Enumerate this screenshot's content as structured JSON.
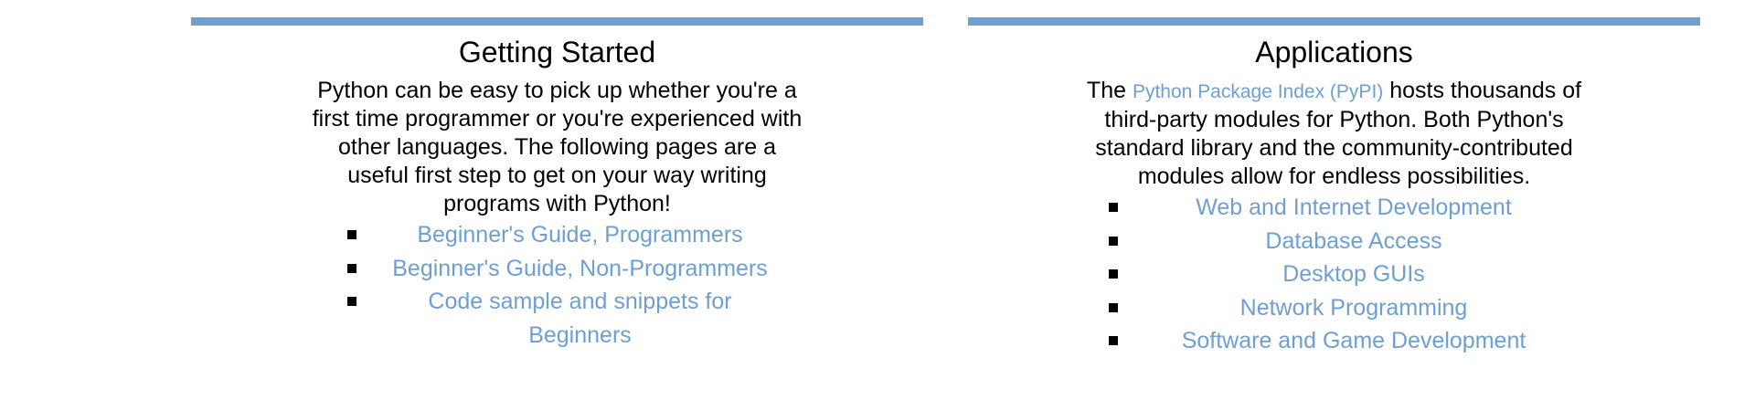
{
  "getting_started": {
    "title": "Getting Started",
    "body": "Python can be easy to pick up whether you're a first time programmer or you're experienced with other languages. The following pages are a useful first step to get on your way writing programs with Python!",
    "links": [
      "Beginner's Guide, Programmers",
      "Beginner's Guide, Non-Programmers",
      "Code sample and snippets for Beginners"
    ]
  },
  "applications": {
    "title": "Applications",
    "body_prefix": "The ",
    "body_link": "Python Package Index (PyPI)",
    "body_suffix": " hosts thousands of third-party modules for Python. Both Python's standard library and the community-contributed modules allow for endless possibilities.",
    "links": [
      "Web and Internet Development",
      "Database Access",
      "Desktop GUIs",
      "Network Programming",
      "Software and Game Development"
    ]
  },
  "colors": {
    "accent": "#6e9fd2",
    "text": "#000000",
    "background": "#ffffff"
  }
}
